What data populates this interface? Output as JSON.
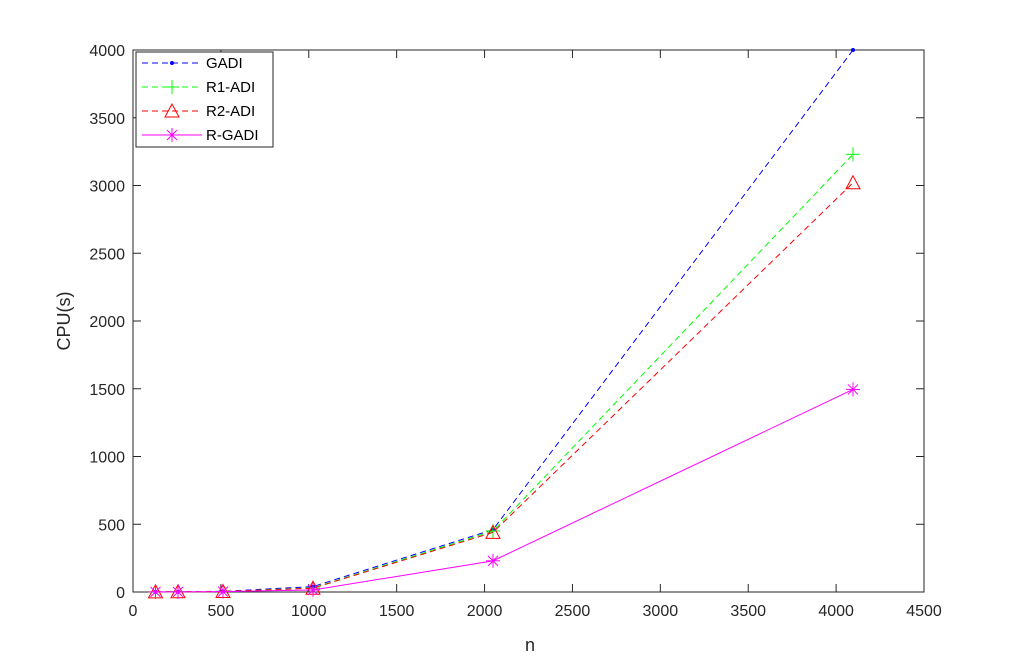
{
  "chart_data": {
    "type": "line",
    "title": "",
    "xlabel": "n",
    "ylabel": "CPU(s)",
    "xlim": [
      0,
      4500
    ],
    "ylim": [
      0,
      4000
    ],
    "xticks": [
      0,
      500,
      1000,
      1500,
      2000,
      2500,
      3000,
      3500,
      4000,
      4500
    ],
    "yticks": [
      0,
      500,
      1000,
      1500,
      2000,
      2500,
      3000,
      3500,
      4000
    ],
    "grid": false,
    "legend_position": "top-left",
    "x": [
      128,
      256,
      512,
      1024,
      2048,
      4096
    ],
    "series": [
      {
        "name": "GADI",
        "values": [
          1,
          2,
          5,
          40,
          460,
          4000
        ],
        "color": "#0000ff",
        "line_style": "dashed",
        "marker": "dot"
      },
      {
        "name": "R1-ADI",
        "values": [
          1,
          2,
          4,
          30,
          450,
          3230
        ],
        "color": "#00ff00",
        "line_style": "dashed",
        "marker": "plus"
      },
      {
        "name": "R2-ADI",
        "values": [
          1,
          2,
          4,
          28,
          440,
          3020
        ],
        "color": "#ff0000",
        "line_style": "dashed",
        "marker": "triangle"
      },
      {
        "name": "R-GADI",
        "values": [
          1,
          1,
          3,
          15,
          230,
          1495
        ],
        "color": "#ff00ff",
        "line_style": "solid",
        "marker": "asterisk"
      }
    ]
  }
}
